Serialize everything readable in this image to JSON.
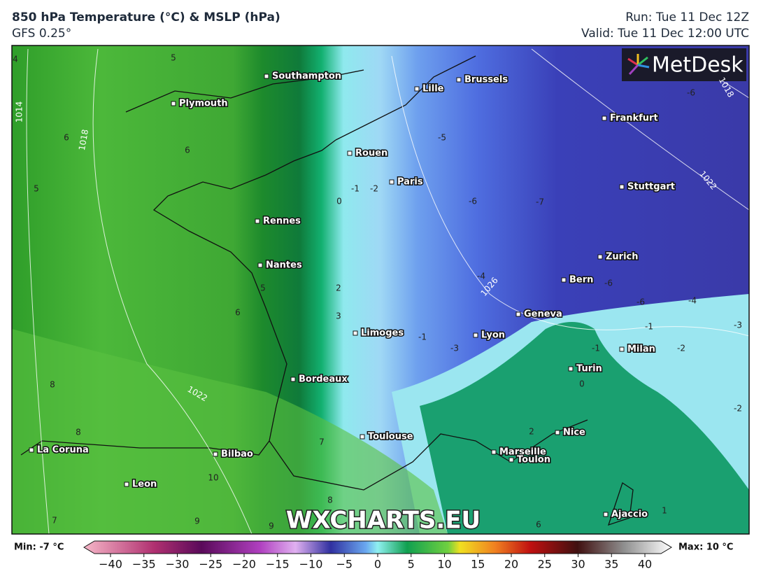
{
  "header": {
    "title": "850 hPa Temperature (°C) & MSLP (hPa)",
    "model": "GFS 0.25°",
    "run": "Run: Tue 11 Dec 12Z",
    "valid": "Valid: Tue 11 Dec 12:00 UTC"
  },
  "logo": "MetDesk",
  "watermark": "WXCHARTS.EU",
  "cities": [
    "Southampton",
    "Brussels",
    "Lille",
    "Plymouth",
    "Frankfurt",
    "Rouen",
    "Paris",
    "Stuttgart",
    "Rennes",
    "Nantes",
    "Zurich",
    "Bern",
    "Geneva",
    "Limoges",
    "Lyon",
    "Milan",
    "Turin",
    "Bordeaux",
    "Toulouse",
    "Nice",
    "La Coruna",
    "Marseille",
    "Bilbao",
    "Toulon",
    "Leon",
    "Ajaccio"
  ],
  "contour_labels": [
    "1014",
    "1018",
    "1022",
    "1026",
    "1022",
    "1018",
    "6",
    "6",
    "5",
    "4",
    "5",
    "5",
    "6",
    "8",
    "8",
    "7",
    "10",
    "9",
    "9",
    "8",
    "7",
    "0",
    "-1",
    "-2",
    "2",
    "3",
    "-1",
    "-3",
    "-4",
    "-5",
    "-6",
    "-7",
    "-6",
    "-6",
    "-6",
    "-4",
    "-3",
    "-2",
    "-1",
    "-1",
    "0",
    "-2",
    "2",
    "6",
    "1"
  ],
  "legend": {
    "min": "Min: -7 °C",
    "max": "Max: 10 °C",
    "ticks": [
      {
        "value": -40,
        "label": "−40"
      },
      {
        "value": -35,
        "label": "−35"
      },
      {
        "value": -30,
        "label": "−30"
      },
      {
        "value": -25,
        "label": "−25"
      },
      {
        "value": -20,
        "label": "−20"
      },
      {
        "value": -15,
        "label": "−15"
      },
      {
        "value": -10,
        "label": "−10"
      },
      {
        "value": -5,
        "label": "−5"
      },
      0,
      5,
      10,
      15,
      20,
      25,
      30,
      35,
      40
    ]
  }
}
